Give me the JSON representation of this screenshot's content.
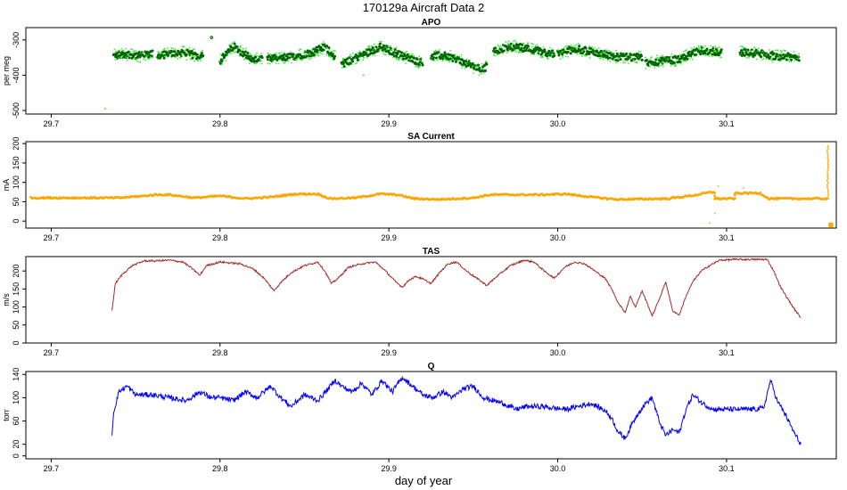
{
  "figure": {
    "title": "170129a   Aircraft Data 2",
    "xlabel": "day of year"
  },
  "chart_data": [
    {
      "type": "scatter",
      "title": "APO",
      "ylabel": "per meg",
      "xlim": [
        29.685,
        30.165
      ],
      "ylim": [
        -510,
        -265
      ],
      "yticks": [
        -500,
        -400,
        -300
      ],
      "xticks": [
        29.7,
        29.8,
        29.9,
        30.0,
        30.1
      ],
      "colors": {
        "light": "#33ee33",
        "dark": "#006400"
      },
      "segments": [
        {
          "start": 29.737,
          "end": 29.76,
          "points": [
            [
              29.737,
              -345
            ],
            [
              29.745,
              -340
            ],
            [
              29.752,
              -345
            ],
            [
              29.76,
              -340
            ]
          ]
        },
        {
          "start": 29.763,
          "end": 29.79,
          "points": [
            [
              29.763,
              -345
            ],
            [
              29.77,
              -340
            ],
            [
              29.778,
              -335
            ],
            [
              29.786,
              -345
            ],
            [
              29.79,
              -340
            ]
          ]
        },
        {
          "start": 29.793,
          "end": 29.795,
          "points": [
            [
              29.795,
              -293
            ]
          ]
        },
        {
          "start": 29.8,
          "end": 29.825,
          "points": [
            [
              29.8,
              -360
            ],
            [
              29.808,
              -318
            ],
            [
              29.815,
              -340
            ],
            [
              29.82,
              -358
            ],
            [
              29.825,
              -350
            ]
          ]
        },
        {
          "start": 29.828,
          "end": 29.868,
          "points": [
            [
              29.828,
              -355
            ],
            [
              29.84,
              -350
            ],
            [
              29.855,
              -335
            ],
            [
              29.862,
              -320
            ],
            [
              29.868,
              -345
            ]
          ]
        },
        {
          "start": 29.872,
          "end": 29.92,
          "points": [
            [
              29.872,
              -370
            ],
            [
              29.885,
              -340
            ],
            [
              29.895,
              -320
            ],
            [
              29.908,
              -345
            ],
            [
              29.92,
              -365
            ]
          ]
        },
        {
          "start": 29.925,
          "end": 29.958,
          "points": [
            [
              29.925,
              -345
            ],
            [
              29.935,
              -345
            ],
            [
              29.945,
              -365
            ],
            [
              29.955,
              -385
            ],
            [
              29.958,
              -375
            ]
          ]
        },
        {
          "start": 29.962,
          "end": 29.998,
          "points": [
            [
              29.962,
              -330
            ],
            [
              29.975,
              -318
            ],
            [
              29.988,
              -330
            ],
            [
              29.998,
              -340
            ]
          ]
        },
        {
          "start": 30.0,
          "end": 30.05,
          "points": [
            [
              30.0,
              -340
            ],
            [
              30.01,
              -325
            ],
            [
              30.022,
              -335
            ],
            [
              30.035,
              -348
            ],
            [
              30.05,
              -350
            ]
          ]
        },
        {
          "start": 30.052,
          "end": 30.097,
          "points": [
            [
              30.052,
              -365
            ],
            [
              30.062,
              -360
            ],
            [
              30.072,
              -355
            ],
            [
              30.085,
              -330
            ],
            [
              30.097,
              -335
            ]
          ]
        },
        {
          "start": 30.108,
          "end": 30.143,
          "points": [
            [
              30.108,
              -335
            ],
            [
              30.118,
              -338
            ],
            [
              30.128,
              -345
            ],
            [
              30.143,
              -350
            ]
          ]
        }
      ],
      "outliers": [
        [
          29.732,
          -495
        ],
        [
          29.885,
          -400
        ],
        [
          29.795,
          -293
        ]
      ]
    },
    {
      "type": "scatter",
      "title": "SA Current",
      "ylabel": "mA",
      "xlim": [
        29.685,
        30.165
      ],
      "ylim": [
        -18,
        205
      ],
      "yticks": [
        0,
        50,
        100,
        150,
        200
      ],
      "xticks": [
        29.7,
        29.8,
        29.9,
        30.0,
        30.1
      ],
      "color": "#ffa500",
      "points": [
        [
          29.688,
          60
        ],
        [
          29.7,
          60
        ],
        [
          29.72,
          60
        ],
        [
          29.74,
          60
        ],
        [
          29.755,
          65
        ],
        [
          29.762,
          68
        ],
        [
          29.77,
          68
        ],
        [
          29.785,
          60
        ],
        [
          29.8,
          65
        ],
        [
          29.815,
          58
        ],
        [
          29.83,
          62
        ],
        [
          29.845,
          70
        ],
        [
          29.858,
          70
        ],
        [
          29.865,
          58
        ],
        [
          29.88,
          60
        ],
        [
          29.895,
          70
        ],
        [
          29.905,
          68
        ],
        [
          29.915,
          58
        ],
        [
          29.93,
          56
        ],
        [
          29.95,
          60
        ],
        [
          29.96,
          68
        ],
        [
          29.975,
          68
        ],
        [
          29.99,
          68
        ],
        [
          30.005,
          70
        ],
        [
          30.02,
          62
        ],
        [
          30.035,
          56
        ],
        [
          30.05,
          57
        ],
        [
          30.065,
          58
        ],
        [
          30.08,
          66
        ],
        [
          30.09,
          74
        ],
        [
          30.093,
          74
        ],
        [
          30.093,
          58
        ],
        [
          30.105,
          58
        ],
        [
          30.105,
          72
        ],
        [
          30.12,
          72
        ],
        [
          30.125,
          58
        ],
        [
          30.14,
          58
        ],
        [
          30.16,
          58
        ]
      ],
      "spike": {
        "x": 30.16,
        "ymin": 58,
        "ymax": 195
      },
      "lowcluster": {
        "x": 30.161,
        "ymin": -15,
        "ymax": -5
      },
      "stray": [
        [
          30.09,
          -5
        ],
        [
          30.093,
          20
        ],
        [
          30.095,
          90
        ],
        [
          30.11,
          85
        ]
      ]
    },
    {
      "type": "line",
      "title": "TAS",
      "ylabel": "m/s",
      "xlim": [
        29.685,
        30.165
      ],
      "ylim": [
        0,
        240
      ],
      "yticks": [
        0,
        50,
        100,
        150,
        200
      ],
      "xticks": [
        29.7,
        29.8,
        29.9,
        30.0,
        30.1
      ],
      "color": "#a52a2a",
      "x": [
        29.736,
        29.738,
        29.742,
        29.748,
        29.755,
        29.762,
        29.77,
        29.778,
        29.784,
        29.788,
        29.792,
        29.8,
        29.812,
        29.82,
        29.826,
        29.832,
        29.836,
        29.842,
        29.85,
        29.858,
        29.862,
        29.866,
        29.87,
        29.876,
        29.884,
        29.892,
        29.898,
        29.904,
        29.908,
        29.912,
        29.916,
        29.92,
        29.925,
        29.93,
        29.935,
        29.94,
        29.946,
        29.952,
        29.958,
        29.964,
        29.972,
        29.98,
        29.986,
        29.992,
        29.998,
        30.004,
        30.01,
        30.016,
        30.022,
        30.028,
        30.032,
        30.036,
        30.04,
        30.043,
        30.046,
        30.05,
        30.053,
        30.056,
        30.06,
        30.064,
        30.068,
        30.072,
        30.076,
        30.08,
        30.085,
        30.09,
        30.096,
        30.105,
        30.115,
        30.124,
        30.128,
        30.132,
        30.136,
        30.14,
        30.144
      ],
      "y": [
        90,
        165,
        190,
        215,
        228,
        228,
        230,
        225,
        205,
        188,
        215,
        225,
        220,
        205,
        180,
        145,
        168,
        195,
        215,
        225,
        200,
        165,
        180,
        210,
        220,
        225,
        200,
        170,
        155,
        175,
        185,
        178,
        165,
        195,
        220,
        225,
        200,
        180,
        160,
        185,
        215,
        230,
        225,
        200,
        180,
        210,
        225,
        220,
        200,
        180,
        150,
        110,
        85,
        130,
        100,
        145,
        110,
        75,
        120,
        170,
        90,
        78,
        130,
        170,
        200,
        215,
        230,
        232,
        232,
        232,
        200,
        155,
        125,
        95,
        70
      ]
    },
    {
      "type": "line",
      "title": "Q",
      "ylabel": "torr",
      "xlim": [
        29.685,
        30.165
      ],
      "ylim": [
        -5,
        145
      ],
      "yticks": [
        0,
        20,
        60,
        100,
        140
      ],
      "xticks": [
        29.7,
        29.8,
        29.9,
        30.0,
        30.1
      ],
      "color": "#0000ff",
      "x": [
        29.736,
        29.737,
        29.74,
        29.745,
        29.75,
        29.76,
        29.77,
        29.78,
        29.788,
        29.795,
        29.8,
        29.808,
        29.815,
        29.822,
        29.83,
        29.836,
        29.842,
        29.85,
        29.858,
        29.864,
        29.868,
        29.872,
        29.878,
        29.884,
        29.89,
        29.896,
        29.902,
        29.908,
        29.914,
        29.92,
        29.926,
        29.932,
        29.938,
        29.944,
        29.95,
        29.956,
        29.962,
        29.968,
        29.975,
        29.982,
        29.99,
        29.998,
        30.005,
        30.012,
        30.02,
        30.028,
        30.032,
        30.036,
        30.04,
        30.044,
        30.048,
        30.052,
        30.056,
        30.06,
        30.064,
        30.068,
        30.072,
        30.076,
        30.08,
        30.086,
        30.092,
        30.1,
        30.108,
        30.116,
        30.122,
        30.126,
        30.13,
        30.135,
        30.14,
        30.144
      ],
      "y": [
        35,
        75,
        110,
        120,
        105,
        105,
        100,
        95,
        110,
        100,
        100,
        95,
        110,
        100,
        120,
        100,
        85,
        105,
        95,
        115,
        130,
        120,
        110,
        125,
        105,
        130,
        110,
        135,
        120,
        105,
        100,
        110,
        100,
        115,
        120,
        100,
        95,
        90,
        80,
        85,
        85,
        82,
        80,
        85,
        90,
        78,
        65,
        40,
        30,
        55,
        75,
        90,
        100,
        60,
        35,
        45,
        40,
        80,
        105,
        90,
        80,
        80,
        80,
        80,
        82,
        130,
        95,
        70,
        40,
        20
      ]
    }
  ]
}
